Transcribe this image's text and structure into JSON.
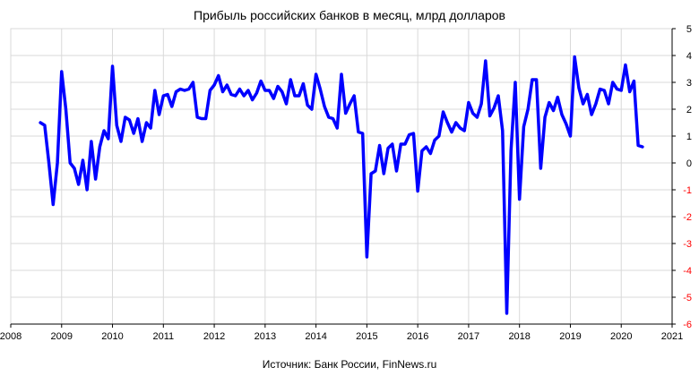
{
  "chart_data": {
    "type": "line",
    "title": "Прибыль российских банков в месяц, млрд долларов",
    "source_note": "Источник: Банк России, FinNews.ru",
    "xlabel": "",
    "ylabel": "",
    "xlim": [
      2008,
      2021
    ],
    "ylim": [
      -6,
      5
    ],
    "x_ticks": [
      2008,
      2009,
      2010,
      2011,
      2012,
      2013,
      2014,
      2015,
      2016,
      2017,
      2018,
      2019,
      2020,
      2021
    ],
    "y_ticks": [
      5,
      4,
      3,
      2,
      1,
      0,
      -1,
      -2,
      -3,
      -4,
      -5,
      -6
    ],
    "grid": "vertical and horizontal",
    "legend": "none",
    "colors": {
      "line": "#0000ff",
      "grid": "#d9d9d9",
      "axis": "#000000",
      "positive_tick": "#000000",
      "negative_tick": "#ff0000"
    },
    "x": [
      2008.583,
      2008.667,
      2008.75,
      2008.833,
      2008.917,
      2009.0,
      2009.083,
      2009.167,
      2009.25,
      2009.333,
      2009.417,
      2009.5,
      2009.583,
      2009.667,
      2009.75,
      2009.833,
      2009.917,
      2010.0,
      2010.083,
      2010.167,
      2010.25,
      2010.333,
      2010.417,
      2010.5,
      2010.583,
      2010.667,
      2010.75,
      2010.833,
      2010.917,
      2011.0,
      2011.083,
      2011.167,
      2011.25,
      2011.333,
      2011.417,
      2011.5,
      2011.583,
      2011.667,
      2011.75,
      2011.833,
      2011.917,
      2012.0,
      2012.083,
      2012.167,
      2012.25,
      2012.333,
      2012.417,
      2012.5,
      2012.583,
      2012.667,
      2012.75,
      2012.833,
      2012.917,
      2013.0,
      2013.083,
      2013.167,
      2013.25,
      2013.333,
      2013.417,
      2013.5,
      2013.583,
      2013.667,
      2013.75,
      2013.833,
      2013.917,
      2014.0,
      2014.083,
      2014.167,
      2014.25,
      2014.333,
      2014.417,
      2014.5,
      2014.583,
      2014.667,
      2014.75,
      2014.833,
      2014.917,
      2015.0,
      2015.083,
      2015.167,
      2015.25,
      2015.333,
      2015.417,
      2015.5,
      2015.583,
      2015.667,
      2015.75,
      2015.833,
      2015.917,
      2016.0,
      2016.083,
      2016.167,
      2016.25,
      2016.333,
      2016.417,
      2016.5,
      2016.583,
      2016.667,
      2016.75,
      2016.833,
      2016.917,
      2017.0,
      2017.083,
      2017.167,
      2017.25,
      2017.333,
      2017.417,
      2017.5,
      2017.583,
      2017.667,
      2017.75,
      2017.833,
      2017.917,
      2018.0,
      2018.083,
      2018.167,
      2018.25,
      2018.333,
      2018.417,
      2018.5,
      2018.583,
      2018.667,
      2018.75,
      2018.833,
      2018.917,
      2019.0,
      2019.083,
      2019.167,
      2019.25,
      2019.333,
      2019.417,
      2019.5,
      2019.583,
      2019.667,
      2019.75,
      2019.833,
      2019.917,
      2020.0,
      2020.083,
      2020.167,
      2020.25,
      2020.333,
      2020.417
    ],
    "series": [
      {
        "values": [
          1.5,
          1.4,
          0.0,
          -1.55,
          0.0,
          3.4,
          2.0,
          0.0,
          -0.2,
          -0.8,
          0.1,
          -1.0,
          0.8,
          -0.6,
          0.6,
          1.2,
          0.9,
          3.6,
          1.4,
          0.8,
          1.7,
          1.6,
          1.1,
          1.65,
          0.8,
          1.5,
          1.3,
          2.7,
          1.8,
          2.5,
          2.55,
          2.1,
          2.65,
          2.75,
          2.7,
          2.75,
          3.0,
          1.7,
          1.65,
          1.65,
          2.7,
          2.9,
          3.25,
          2.65,
          2.9,
          2.55,
          2.5,
          2.75,
          2.5,
          2.7,
          2.35,
          2.6,
          3.05,
          2.7,
          2.7,
          2.4,
          2.85,
          2.65,
          2.2,
          3.1,
          2.5,
          2.5,
          2.95,
          2.15,
          2.0,
          3.3,
          2.75,
          2.1,
          1.7,
          1.65,
          1.3,
          3.3,
          1.85,
          2.2,
          2.5,
          1.15,
          1.1,
          -3.5,
          -0.4,
          -0.3,
          0.65,
          -0.4,
          0.55,
          0.7,
          -0.3,
          0.7,
          0.7,
          1.05,
          1.1,
          -1.05,
          0.45,
          0.6,
          0.35,
          0.85,
          1.0,
          1.9,
          1.5,
          1.15,
          1.5,
          1.3,
          1.2,
          2.25,
          1.85,
          1.7,
          2.2,
          3.8,
          1.75,
          2.05,
          2.5,
          1.2,
          -5.6,
          0.45,
          3.0,
          -1.35,
          1.35,
          2.0,
          3.1,
          3.1,
          -0.2,
          1.7,
          2.25,
          1.95,
          2.45,
          1.8,
          1.45,
          1.0,
          3.95,
          2.8,
          2.2,
          2.55,
          1.8,
          2.2,
          2.75,
          2.7,
          2.2,
          3.0,
          2.75,
          2.7,
          3.65,
          2.65,
          3.05,
          0.65,
          0.6
        ]
      }
    ]
  }
}
